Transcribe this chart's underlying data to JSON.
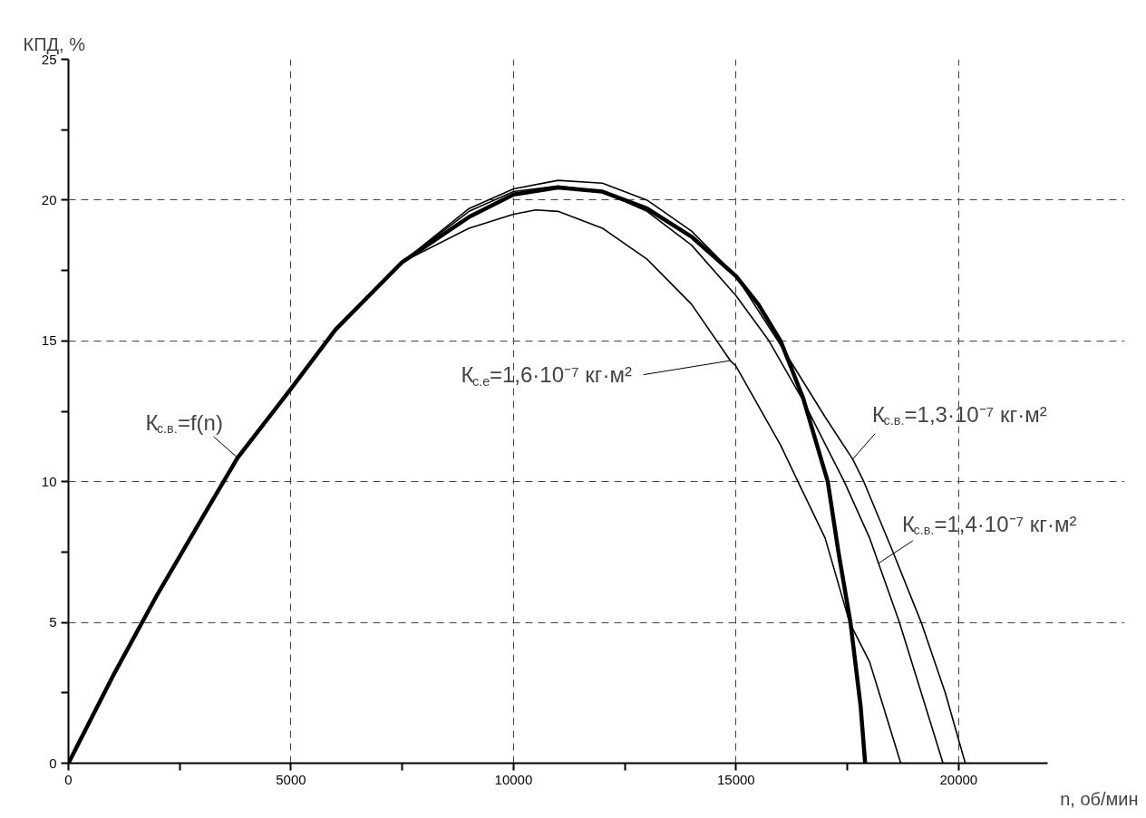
{
  "chart_data": {
    "type": "line",
    "xlabel": "n, об/мин",
    "ylabel": "КПД, %",
    "xlim": [
      0,
      22000
    ],
    "ylim": [
      0,
      25
    ],
    "xticks": [
      0,
      {
        "value": 2500,
        "label": null
      },
      5000,
      {
        "value": 7500,
        "label": null
      },
      10000,
      {
        "value": 12500,
        "label": null
      },
      15000,
      {
        "value": 17500,
        "label": null
      },
      20000
    ],
    "yticks": [
      0,
      {
        "value": 2.5,
        "label": null
      },
      5,
      {
        "value": 7.5,
        "label": null
      },
      10,
      {
        "value": 12.5,
        "label": null
      },
      15,
      {
        "value": 17.5,
        "label": null
      },
      20,
      {
        "value": 22.5,
        "label": null
      },
      25
    ],
    "grid": true,
    "line_style": "solid",
    "series": [
      {
        "color": "#000000",
        "x": [
          0,
          1000,
          2000,
          3000,
          3800,
          5000,
          6000,
          7500,
          9000,
          10000,
          11000,
          12000,
          13000,
          14000,
          15000,
          15500,
          16000,
          16500,
          17060,
          17300,
          17570,
          17800,
          17900
        ],
        "values": [
          0,
          3.1,
          6.0,
          8.7,
          10.85,
          13.3,
          15.4,
          17.8,
          19.4,
          20.2,
          20.45,
          20.3,
          19.7,
          18.7,
          17.3,
          16.3,
          15.0,
          13.0,
          10.0,
          7.5,
          5.0,
          2.0,
          0
        ]
      },
      {
        "color": "#000000",
        "x": [
          0,
          1000,
          2000,
          3000,
          3800,
          5000,
          6000,
          7500,
          9000,
          10000,
          10500,
          11000,
          12000,
          13000,
          14000,
          14870,
          15000,
          16000,
          16390,
          17000,
          17550,
          18000,
          18700
        ],
        "values": [
          0,
          3.1,
          6.0,
          8.7,
          10.85,
          13.3,
          15.4,
          17.8,
          19.0,
          19.5,
          19.65,
          19.6,
          19.0,
          17.9,
          16.3,
          14.3,
          14.1,
          11.3,
          10.0,
          8.0,
          5.0,
          3.6,
          0
        ]
      },
      {
        "color": "#000000",
        "x": [
          0,
          1000,
          2000,
          3000,
          3800,
          5000,
          6000,
          7500,
          9000,
          10000,
          11000,
          12000,
          13000,
          14000,
          15000,
          15740,
          16500,
          17430,
          18000,
          18200,
          18670,
          19200,
          19650
        ],
        "values": [
          0,
          3.1,
          6.0,
          8.7,
          10.85,
          13.3,
          15.4,
          17.8,
          19.6,
          20.3,
          20.5,
          20.3,
          19.6,
          18.4,
          16.6,
          15.0,
          12.9,
          10.0,
          8.0,
          7.1,
          5.0,
          2.3,
          0
        ]
      },
      {
        "color": "#000000",
        "x": [
          0,
          1000,
          2000,
          3000,
          3800,
          5000,
          6000,
          7500,
          9000,
          10000,
          11000,
          12000,
          13000,
          14000,
          15000,
          15940,
          17000,
          17620,
          17870,
          18500,
          19160,
          19700,
          20150
        ],
        "values": [
          0,
          3.1,
          6.0,
          8.7,
          10.85,
          13.3,
          15.4,
          17.8,
          19.7,
          20.4,
          20.7,
          20.6,
          20.0,
          18.9,
          17.3,
          15.0,
          12.3,
          10.8,
          10.0,
          7.6,
          5.0,
          2.5,
          0
        ]
      }
    ],
    "annotations": [
      {
        "text": "К$_{с.в.}$=f(n)",
        "x": 3800,
        "y": 10.85
      },
      {
        "text": "К$_{с.е}$=1,6·10⁻⁷ кг·м²",
        "x": 14870,
        "y": 14.3
      },
      {
        "text": "К$_{с.в.}$=1,3·10⁻⁷ кг·м²",
        "x": 17620,
        "y": 10.8
      },
      {
        "text": "К$_{с.в.}$=1,4·10⁻⁷ кг·м²",
        "x": 18200,
        "y": 7.1
      }
    ]
  }
}
